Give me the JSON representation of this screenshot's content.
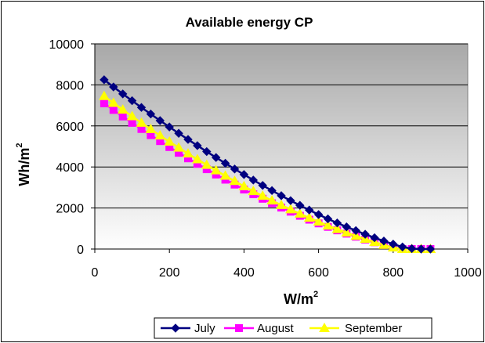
{
  "chart_data": {
    "type": "line",
    "title": "Available energy CP",
    "xlabel": "W/m",
    "xlabel_sup": "2",
    "ylabel": "Wh/m",
    "ylabel_sup": "2",
    "xlim": [
      0,
      1000
    ],
    "ylim": [
      0,
      10000
    ],
    "x_ticks": [
      "0",
      "200",
      "400",
      "600",
      "800",
      "1000"
    ],
    "y_ticks": [
      "0",
      "2000",
      "4000",
      "6000",
      "8000",
      "10000"
    ],
    "grid": true,
    "legend_position": "bottom",
    "series": [
      {
        "name": "July",
        "color": "#000080",
        "marker": "diamond",
        "points": [
          [
            25,
            8250
          ],
          [
            50,
            7900
          ],
          [
            75,
            7560
          ],
          [
            100,
            7230
          ],
          [
            125,
            6900
          ],
          [
            150,
            6580
          ],
          [
            175,
            6260
          ],
          [
            200,
            5950
          ],
          [
            225,
            5640
          ],
          [
            250,
            5340
          ],
          [
            275,
            5040
          ],
          [
            300,
            4750
          ],
          [
            325,
            4460
          ],
          [
            350,
            4180
          ],
          [
            375,
            3900
          ],
          [
            400,
            3630
          ],
          [
            425,
            3360
          ],
          [
            450,
            3100
          ],
          [
            475,
            2850
          ],
          [
            500,
            2600
          ],
          [
            525,
            2360
          ],
          [
            550,
            2130
          ],
          [
            575,
            1900
          ],
          [
            600,
            1680
          ],
          [
            625,
            1470
          ],
          [
            650,
            1270
          ],
          [
            675,
            1080
          ],
          [
            700,
            900
          ],
          [
            725,
            720
          ],
          [
            750,
            550
          ],
          [
            775,
            390
          ],
          [
            800,
            240
          ],
          [
            825,
            100
          ],
          [
            850,
            20
          ],
          [
            875,
            0
          ],
          [
            900,
            0
          ]
        ]
      },
      {
        "name": "August",
        "color": "#FF00FF",
        "marker": "square",
        "points": [
          [
            25,
            7100
          ],
          [
            50,
            6780
          ],
          [
            75,
            6460
          ],
          [
            100,
            6150
          ],
          [
            125,
            5850
          ],
          [
            150,
            5550
          ],
          [
            175,
            5260
          ],
          [
            200,
            4970
          ],
          [
            225,
            4690
          ],
          [
            250,
            4420
          ],
          [
            275,
            4150
          ],
          [
            300,
            3890
          ],
          [
            325,
            3630
          ],
          [
            350,
            3380
          ],
          [
            375,
            3140
          ],
          [
            400,
            2900
          ],
          [
            425,
            2670
          ],
          [
            450,
            2450
          ],
          [
            475,
            2230
          ],
          [
            500,
            2020
          ],
          [
            525,
            1820
          ],
          [
            550,
            1620
          ],
          [
            575,
            1430
          ],
          [
            600,
            1250
          ],
          [
            625,
            1080
          ],
          [
            650,
            910
          ],
          [
            675,
            750
          ],
          [
            700,
            600
          ],
          [
            725,
            460
          ],
          [
            750,
            330
          ],
          [
            775,
            200
          ],
          [
            800,
            80
          ],
          [
            825,
            0
          ],
          [
            850,
            0
          ],
          [
            875,
            0
          ],
          [
            900,
            0
          ]
        ]
      },
      {
        "name": "September",
        "color": "#FFFF00",
        "marker": "triangle",
        "points": [
          [
            25,
            7450
          ],
          [
            50,
            7120
          ],
          [
            75,
            6790
          ],
          [
            100,
            6470
          ],
          [
            125,
            6150
          ],
          [
            150,
            5840
          ],
          [
            175,
            5530
          ],
          [
            200,
            5230
          ],
          [
            225,
            4940
          ],
          [
            250,
            4650
          ],
          [
            275,
            4370
          ],
          [
            300,
            4100
          ],
          [
            325,
            3830
          ],
          [
            350,
            3570
          ],
          [
            375,
            3310
          ],
          [
            400,
            3060
          ],
          [
            425,
            2820
          ],
          [
            450,
            2590
          ],
          [
            475,
            2360
          ],
          [
            500,
            2140
          ],
          [
            525,
            1930
          ],
          [
            550,
            1720
          ],
          [
            575,
            1520
          ],
          [
            600,
            1330
          ],
          [
            625,
            1140
          ],
          [
            650,
            970
          ],
          [
            675,
            800
          ],
          [
            700,
            640
          ],
          [
            725,
            490
          ],
          [
            750,
            340
          ],
          [
            775,
            200
          ],
          [
            800,
            70
          ],
          [
            825,
            0
          ],
          [
            850,
            0
          ],
          [
            875,
            0
          ],
          [
            900,
            0
          ]
        ]
      }
    ]
  }
}
